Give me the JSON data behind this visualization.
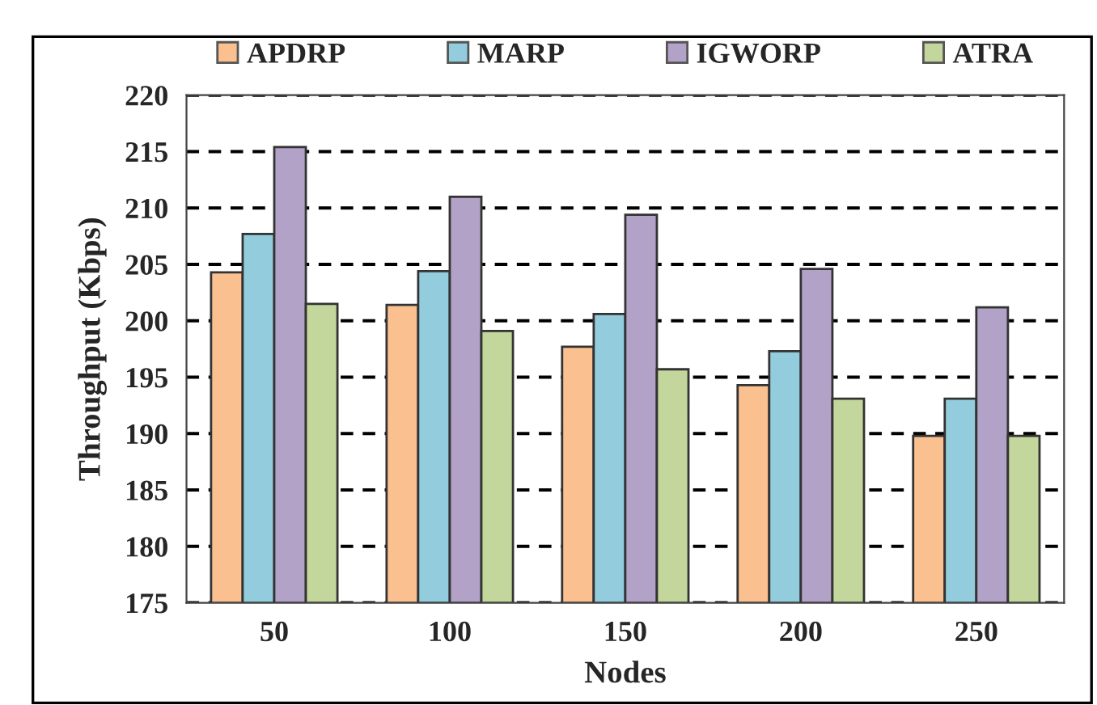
{
  "chart_data": {
    "type": "bar",
    "xlabel": "Nodes",
    "ylabel": "Throughput (Kbps)",
    "categories": [
      "50",
      "100",
      "150",
      "200",
      "250"
    ],
    "series": [
      {
        "name": "APDRP",
        "color": "#fac090",
        "values": [
          204.3,
          201.4,
          197.7,
          194.3,
          189.8
        ]
      },
      {
        "name": "MARP",
        "color": "#93cddd",
        "values": [
          207.7,
          204.4,
          200.6,
          197.3,
          193.1
        ]
      },
      {
        "name": "IGWORP",
        "color": "#b3a2c7",
        "values": [
          215.4,
          211.0,
          209.4,
          204.6,
          201.2
        ]
      },
      {
        "name": "ATRA",
        "color": "#c3d69b",
        "values": [
          201.5,
          199.1,
          195.7,
          193.1,
          189.8
        ]
      }
    ],
    "ylim": [
      175,
      220
    ],
    "yticks": [
      175,
      180,
      185,
      190,
      195,
      200,
      205,
      210,
      215,
      220
    ],
    "grid": "y",
    "line_style": "dashed",
    "legend": "top"
  }
}
